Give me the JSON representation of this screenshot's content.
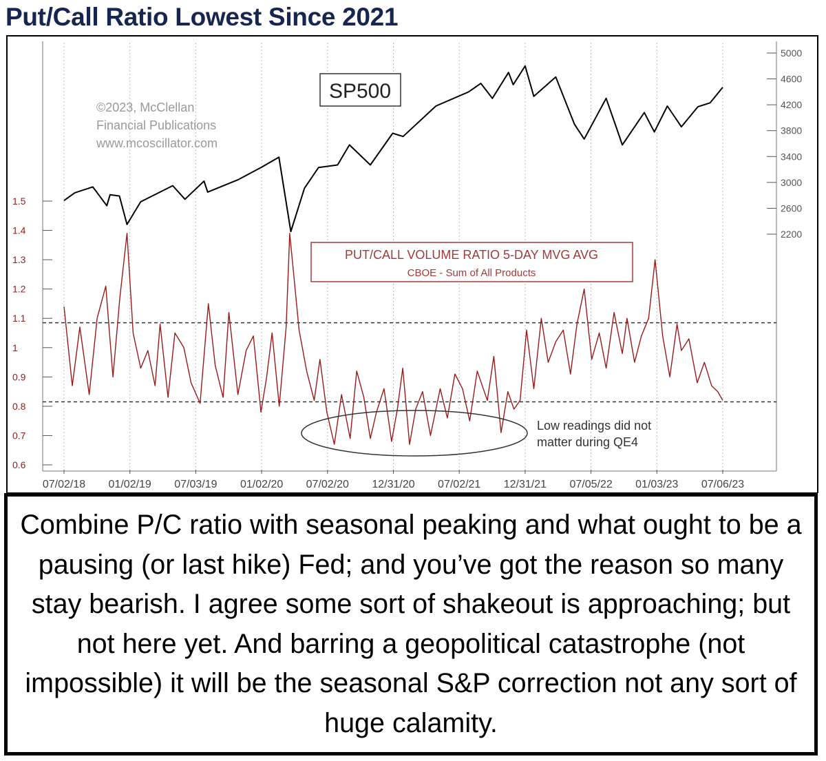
{
  "title": "Put/Call Ratio Lowest Since 2021",
  "caption": "Combine P/C ratio with seasonal peaking and what ought to be a pausing (or last hike) Fed; and you’ve got the reason so many stay bearish. I agree some sort of shakeout is approaching; but not here yet. And barring a geopolitical catastrophe (not impossible) it will be the seasonal S&P correction not any sort of huge calamity.",
  "chart_data": {
    "type": "line",
    "copyright_lines": [
      "©2023, McClellan",
      "Financial Publications",
      "www.mcoscillator.com"
    ],
    "x_tick_labels": [
      "07/02/18",
      "01/02/19",
      "07/03/19",
      "01/02/20",
      "07/02/20",
      "12/31/20",
      "07/02/21",
      "12/31/21",
      "07/05/22",
      "01/03/23",
      "07/06/23"
    ],
    "x_range": [
      "2018-07-02",
      "2023-07-06"
    ],
    "left_axis": {
      "range": [
        0.6,
        1.5
      ],
      "tick_labels": [
        "0.6",
        "0.7",
        "0.8",
        "0.9",
        "1",
        "1.1",
        "1.2",
        "1.3",
        "1.4",
        "1.5"
      ],
      "tick_values": [
        0.6,
        0.7,
        0.8,
        0.9,
        1.0,
        1.1,
        1.2,
        1.3,
        1.4,
        1.5
      ]
    },
    "right_axis": {
      "range": [
        2200,
        5000
      ],
      "tick_labels": [
        "2200",
        "2600",
        "3000",
        "3400",
        "3800",
        "4200",
        "4600",
        "5000"
      ],
      "tick_values": [
        2200,
        2600,
        3000,
        3400,
        3800,
        4200,
        4600,
        5000
      ]
    },
    "grid": {
      "vertical": true,
      "style": "dotted"
    },
    "reference_lines": [
      1.085,
      0.815
    ],
    "annotations": {
      "sp_label": "SP500",
      "pc_label_line1": "PUT/CALL VOLUME RATIO 5-DAY MVG AVG",
      "pc_label_line2": "CBOE - Sum of All Products",
      "qe_note_line1": "Low readings did not",
      "qe_note_line2": "matter during QE4"
    },
    "series": [
      {
        "name": "SP500",
        "axis": "right",
        "color": "#000000",
        "x": [
          "2018-07-02",
          "2018-08-01",
          "2018-09-20",
          "2018-10-29",
          "2018-11-07",
          "2018-12-03",
          "2018-12-24",
          "2019-01-31",
          "2019-04-30",
          "2019-06-03",
          "2019-07-26",
          "2019-08-05",
          "2019-10-28",
          "2019-12-31",
          "2020-02-19",
          "2020-03-23",
          "2020-04-30",
          "2020-06-08",
          "2020-07-31",
          "2020-09-02",
          "2020-10-30",
          "2020-12-31",
          "2021-01-29",
          "2021-04-30",
          "2021-07-30",
          "2021-09-02",
          "2021-10-04",
          "2021-11-18",
          "2021-12-01",
          "2022-01-03",
          "2022-01-27",
          "2022-03-29",
          "2022-05-20",
          "2022-06-16",
          "2022-08-16",
          "2022-09-12",
          "2022-09-30",
          "2022-11-30",
          "2022-12-28",
          "2023-02-02",
          "2023-03-13",
          "2023-04-28",
          "2023-06-01",
          "2023-07-06"
        ],
        "y": [
          2720,
          2840,
          2930,
          2640,
          2810,
          2790,
          2350,
          2700,
          2950,
          2740,
          3020,
          2850,
          3040,
          3230,
          3390,
          2240,
          2910,
          3230,
          3270,
          3580,
          3270,
          3760,
          3710,
          4180,
          4400,
          4530,
          4300,
          4700,
          4510,
          4800,
          4330,
          4630,
          3900,
          3670,
          4300,
          3870,
          3580,
          4080,
          3780,
          4180,
          3860,
          4170,
          4230,
          4470
        ]
      },
      {
        "name": "PUT/CALL VOLUME RATIO 5-DAY MVG AVG",
        "axis": "left",
        "color": "#9a1a1a",
        "x": [
          "2018-07-02",
          "2018-07-25",
          "2018-08-15",
          "2018-09-10",
          "2018-10-02",
          "2018-10-26",
          "2018-11-15",
          "2018-12-04",
          "2018-12-24",
          "2019-01-10",
          "2019-01-31",
          "2019-02-20",
          "2019-03-12",
          "2019-03-26",
          "2019-04-17",
          "2019-05-06",
          "2019-05-31",
          "2019-06-20",
          "2019-07-15",
          "2019-08-07",
          "2019-08-26",
          "2019-09-17",
          "2019-10-03",
          "2019-10-28",
          "2019-11-20",
          "2019-12-10",
          "2019-12-31",
          "2020-01-16",
          "2020-01-31",
          "2020-02-20",
          "2020-03-10",
          "2020-03-20",
          "2020-04-15",
          "2020-05-06",
          "2020-05-27",
          "2020-06-12",
          "2020-07-01",
          "2020-07-22",
          "2020-08-11",
          "2020-09-04",
          "2020-09-22",
          "2020-10-12",
          "2020-10-30",
          "2020-11-16",
          "2020-12-07",
          "2020-12-28",
          "2021-01-13",
          "2021-01-28",
          "2021-02-16",
          "2021-03-05",
          "2021-03-24",
          "2021-04-15",
          "2021-05-12",
          "2021-06-01",
          "2021-06-22",
          "2021-07-13",
          "2021-08-02",
          "2021-08-23",
          "2021-09-20",
          "2021-10-08",
          "2021-10-28",
          "2021-11-16",
          "2021-12-03",
          "2021-12-20",
          "2022-01-07",
          "2022-01-27",
          "2022-02-17",
          "2022-03-08",
          "2022-03-29",
          "2022-04-19",
          "2022-05-09",
          "2022-05-27",
          "2022-06-16",
          "2022-07-07",
          "2022-07-28",
          "2022-08-16",
          "2022-09-07",
          "2022-09-30",
          "2022-10-13",
          "2022-11-03",
          "2022-11-22",
          "2022-12-12",
          "2022-12-30",
          "2023-01-20",
          "2023-02-09",
          "2023-03-01",
          "2023-03-13",
          "2023-04-03",
          "2023-04-26",
          "2023-05-16",
          "2023-06-05",
          "2023-06-22",
          "2023-07-06"
        ],
        "y": [
          1.14,
          0.87,
          1.07,
          0.84,
          1.1,
          1.21,
          0.9,
          1.17,
          1.39,
          1.05,
          0.93,
          0.99,
          0.87,
          1.08,
          0.83,
          1.05,
          1.0,
          0.88,
          0.81,
          1.15,
          0.94,
          0.83,
          1.12,
          0.84,
          0.99,
          1.04,
          0.78,
          0.9,
          1.05,
          0.8,
          1.07,
          1.39,
          1.06,
          0.92,
          0.82,
          0.96,
          0.78,
          0.67,
          0.84,
          0.69,
          0.92,
          0.83,
          0.69,
          0.78,
          0.86,
          0.68,
          0.79,
          0.93,
          0.67,
          0.79,
          0.85,
          0.7,
          0.86,
          0.76,
          0.91,
          0.86,
          0.75,
          0.92,
          0.82,
          0.97,
          0.71,
          0.85,
          0.79,
          0.82,
          1.06,
          0.86,
          1.1,
          0.95,
          1.02,
          1.06,
          0.91,
          1.08,
          1.2,
          0.96,
          1.05,
          0.93,
          1.12,
          0.98,
          1.1,
          0.95,
          1.04,
          1.1,
          1.3,
          1.04,
          0.9,
          1.08,
          0.99,
          1.03,
          0.88,
          0.95,
          0.87,
          0.85,
          0.82
        ]
      }
    ]
  }
}
